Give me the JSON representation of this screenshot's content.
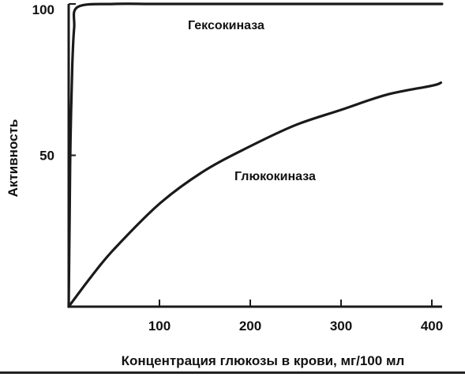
{
  "chart_data": {
    "type": "line",
    "xlabel": "Концентрация глюкозы в крови, мг/100 мл",
    "ylabel": "Активность",
    "xlim": [
      0,
      410
    ],
    "ylim": [
      0,
      100
    ],
    "x_ticks": [
      100,
      200,
      300,
      400
    ],
    "y_ticks": [
      50,
      100
    ],
    "series": [
      {
        "name": "Гексокиназа",
        "x": [
          0,
          1,
          2,
          4,
          6,
          10,
          50,
          100,
          200,
          300,
          400,
          410
        ],
        "y": [
          0,
          30,
          55,
          80,
          92,
          99,
          100,
          100,
          100,
          100,
          100,
          100
        ]
      },
      {
        "name": "Глюкокиназа",
        "x": [
          0,
          25,
          50,
          100,
          150,
          200,
          250,
          300,
          350,
          400,
          410
        ],
        "y": [
          0,
          10,
          19,
          34,
          45,
          53,
          60,
          65,
          70,
          73,
          74
        ]
      }
    ],
    "colors": {
      "line": "#1a1a1a",
      "axis": "#1a1a1a",
      "background": "#ffffff"
    }
  }
}
